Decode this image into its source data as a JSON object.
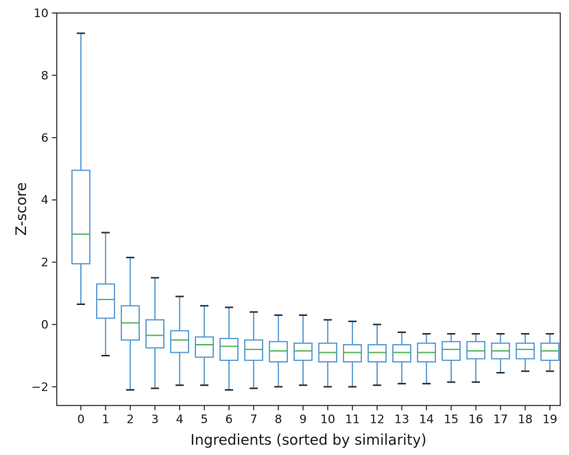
{
  "chart_data": {
    "type": "box",
    "title": "",
    "xlabel": "Ingredients (sorted by similarity)",
    "ylabel": "Z-score",
    "categories": [
      "0",
      "1",
      "2",
      "3",
      "4",
      "5",
      "6",
      "7",
      "8",
      "9",
      "10",
      "11",
      "12",
      "13",
      "14",
      "15",
      "16",
      "17",
      "18",
      "19"
    ],
    "ylim": [
      -2.6,
      10.0
    ],
    "xlim_index": [
      -0.98,
      19.42
    ],
    "ytick_values": [
      -2,
      0,
      2,
      4,
      6,
      8,
      10
    ],
    "ytick_labels": [
      "−2",
      "0",
      "2",
      "4",
      "6",
      "8",
      "10"
    ],
    "grid": false,
    "legend": null,
    "show_fliers": false,
    "boxes": [
      {
        "label": "0",
        "whislo": 0.65,
        "q1": 1.95,
        "med": 2.9,
        "q3": 4.95,
        "whishi": 9.35
      },
      {
        "label": "1",
        "whislo": -1.0,
        "q1": 0.2,
        "med": 0.8,
        "q3": 1.3,
        "whishi": 2.95
      },
      {
        "label": "2",
        "whislo": -2.1,
        "q1": -0.5,
        "med": 0.05,
        "q3": 0.6,
        "whishi": 2.15
      },
      {
        "label": "3",
        "whislo": -2.05,
        "q1": -0.75,
        "med": -0.35,
        "q3": 0.15,
        "whishi": 1.5
      },
      {
        "label": "4",
        "whislo": -1.95,
        "q1": -0.9,
        "med": -0.5,
        "q3": -0.2,
        "whishi": 0.9
      },
      {
        "label": "5",
        "whislo": -1.95,
        "q1": -1.05,
        "med": -0.65,
        "q3": -0.4,
        "whishi": 0.6
      },
      {
        "label": "6",
        "whislo": -2.1,
        "q1": -1.15,
        "med": -0.7,
        "q3": -0.45,
        "whishi": 0.55
      },
      {
        "label": "7",
        "whislo": -2.05,
        "q1": -1.15,
        "med": -0.8,
        "q3": -0.5,
        "whishi": 0.4
      },
      {
        "label": "8",
        "whislo": -2.0,
        "q1": -1.2,
        "med": -0.85,
        "q3": -0.55,
        "whishi": 0.3
      },
      {
        "label": "9",
        "whislo": -1.95,
        "q1": -1.15,
        "med": -0.85,
        "q3": -0.6,
        "whishi": 0.3
      },
      {
        "label": "10",
        "whislo": -2.0,
        "q1": -1.2,
        "med": -0.9,
        "q3": -0.6,
        "whishi": 0.15
      },
      {
        "label": "11",
        "whislo": -2.0,
        "q1": -1.2,
        "med": -0.9,
        "q3": -0.65,
        "whishi": 0.1
      },
      {
        "label": "12",
        "whislo": -1.95,
        "q1": -1.2,
        "med": -0.9,
        "q3": -0.65,
        "whishi": 0.0
      },
      {
        "label": "13",
        "whislo": -1.9,
        "q1": -1.2,
        "med": -0.9,
        "q3": -0.65,
        "whishi": -0.25
      },
      {
        "label": "14",
        "whislo": -1.9,
        "q1": -1.2,
        "med": -0.9,
        "q3": -0.6,
        "whishi": -0.3
      },
      {
        "label": "15",
        "whislo": -1.85,
        "q1": -1.15,
        "med": -0.8,
        "q3": -0.55,
        "whishi": -0.3
      },
      {
        "label": "16",
        "whislo": -1.85,
        "q1": -1.1,
        "med": -0.85,
        "q3": -0.55,
        "whishi": -0.3
      },
      {
        "label": "17",
        "whislo": -1.55,
        "q1": -1.1,
        "med": -0.85,
        "q3": -0.6,
        "whishi": -0.3
      },
      {
        "label": "18",
        "whislo": -1.5,
        "q1": -1.1,
        "med": -0.8,
        "q3": -0.6,
        "whishi": -0.3
      },
      {
        "label": "19",
        "whislo": -1.5,
        "q1": -1.15,
        "med": -0.85,
        "q3": -0.6,
        "whishi": -0.3
      }
    ],
    "style": {
      "background": "#ffffff",
      "box_color": "#4f94ce",
      "whisker_color": "#4f94ce",
      "cap_color": "#2e2e2e",
      "median_color": "#4caf50",
      "axis_color": "#2b2b2b",
      "text_color": "#1a1a1a"
    }
  }
}
